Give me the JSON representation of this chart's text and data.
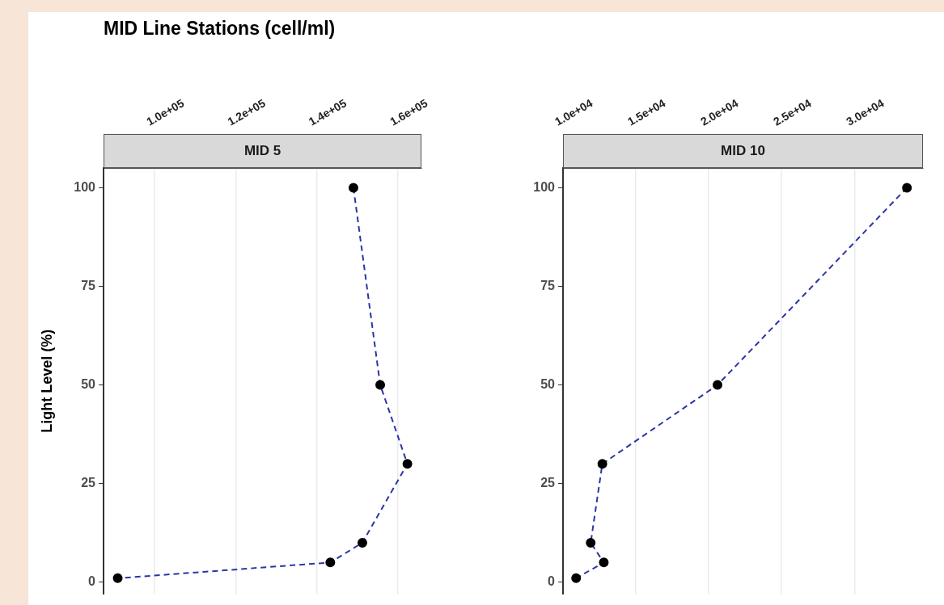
{
  "chart_data": [
    {
      "type": "line",
      "title": "MID Line Stations (cell/ml)",
      "subtitle": "MID 5",
      "ylabel": "Light Level (%)",
      "xlim": [
        87400,
        165800
      ],
      "xticks": [
        {
          "value": 100000,
          "label": "1.0e+05"
        },
        {
          "value": 120000,
          "label": "1.2e+05"
        },
        {
          "value": 140000,
          "label": "1.4e+05"
        },
        {
          "value": 160000,
          "label": "1.6e+05"
        }
      ],
      "ylim": [
        -3,
        105
      ],
      "yticks": [
        0,
        25,
        50,
        75,
        100
      ],
      "grid": "x",
      "legend": false,
      "marker": "circle",
      "line_style": "dashed",
      "series": [
        {
          "color": "#2b35a6",
          "x": [
            149000,
            155600,
            162300,
            151200,
            143300,
            90900
          ],
          "values": [
            100,
            50,
            30,
            10,
            5,
            1
          ]
        }
      ]
    },
    {
      "type": "line",
      "subtitle": "MID 10",
      "xlim": [
        10000,
        34700
      ],
      "xticks": [
        {
          "value": 10000,
          "label": "1.0e+04"
        },
        {
          "value": 15000,
          "label": "1.5e+04"
        },
        {
          "value": 20000,
          "label": "2.0e+04"
        },
        {
          "value": 25000,
          "label": "2.5e+04"
        },
        {
          "value": 30000,
          "label": "3.0e+04"
        }
      ],
      "ylim": [
        -3,
        105
      ],
      "yticks": [
        0,
        25,
        50,
        75,
        100
      ],
      "grid": "x",
      "legend": false,
      "marker": "circle",
      "line_style": "dashed",
      "series": [
        {
          "color": "#2b35a6",
          "x": [
            33600,
            20600,
            12700,
            11900,
            12800,
            10900
          ],
          "values": [
            100,
            50,
            30,
            10,
            5,
            1
          ]
        }
      ]
    }
  ]
}
